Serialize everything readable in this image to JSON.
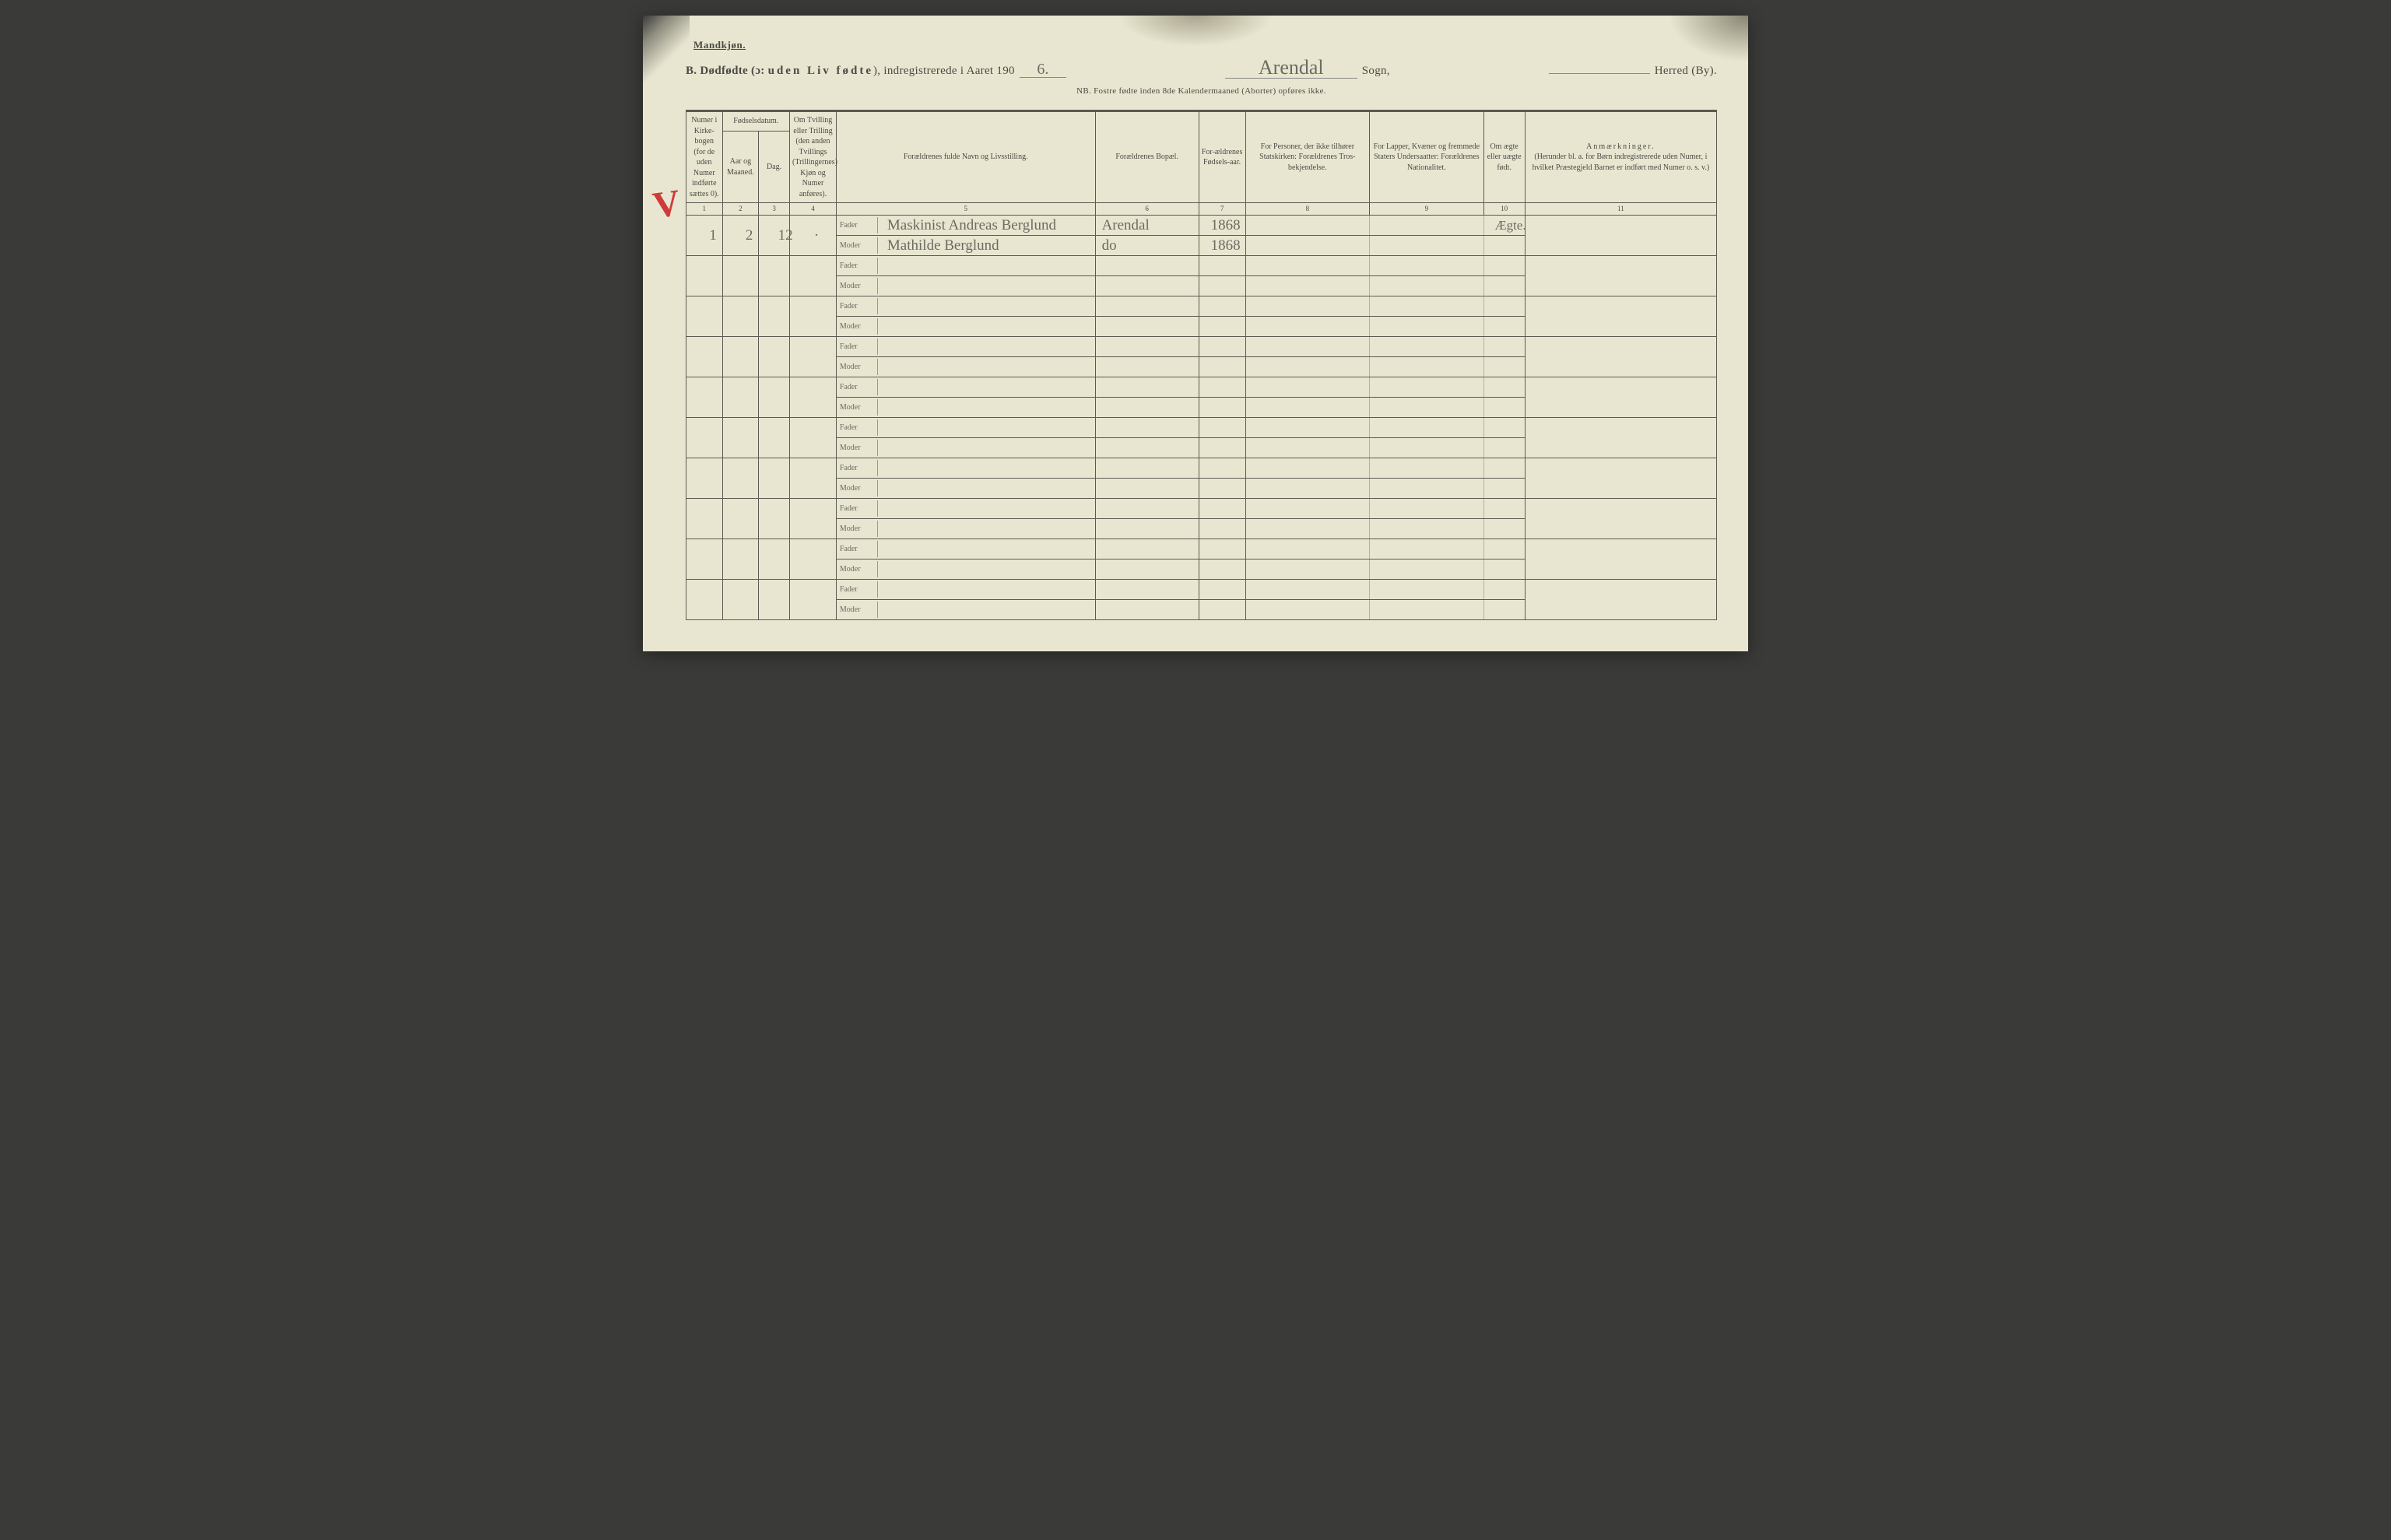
{
  "header": {
    "corner_label": "Mandkjøn.",
    "title_prefix": "B.  Dødfødte (ɔ: ",
    "title_spaced": "uden Liv fødte",
    "title_mid1": "), indregistrerede i Aaret 190",
    "year_hand": "6.",
    "sogn_hand": "Arendal",
    "title_sogn": " Sogn,",
    "herred_hand": "",
    "title_herred": "Herred (By).",
    "subtitle": "NB.  Fostre fødte inden 8de Kalendermaaned (Aborter) opføres ikke."
  },
  "columns": {
    "c1": "Numer i Kirke-bogen (for de uden Numer indførte sættes 0).",
    "c2_top": "Fødselsdatum.",
    "c2a": "Aar og Maaned.",
    "c2b": "Dag.",
    "c4": "Om Tvilling eller Trilling (den anden Tvillings (Trillingernes) Kjøn og Numer anføres).",
    "c5": "Forældrenes fulde Navn og Livsstilling.",
    "c6": "Forældrenes Bopæl.",
    "c7": "For-ældrenes Fødsels-aar.",
    "c8": "For Personer, der ikke tilhører Statskirken: Forældrenes Tros-bekjendelse.",
    "c9": "For Lapper, Kvæner og fremmede Staters Undersaatter: Forældrenes Nationalitet.",
    "c10": "Om ægte eller uægte født.",
    "c11_t": "Anmærkninger.",
    "c11_s": "(Herunder bl. a. for Børn indregistrerede uden Numer, i hvilket Præstegjeld Barnet er indført med Numer o. s. v.)"
  },
  "colnums": [
    "1",
    "2",
    "3",
    "4",
    "5",
    "6",
    "7",
    "8",
    "9",
    "10",
    "11"
  ],
  "labels": {
    "fader": "Fader",
    "moder": "Moder"
  },
  "entries": [
    {
      "num": "1",
      "month": "2",
      "day": "12",
      "twin": "·",
      "fader": "Maskinist Andreas Berglund",
      "moder": "Mathilde Berglund",
      "bopael_f": "Arendal",
      "bopael_m": "do",
      "faar_f": "1868",
      "faar_m": "1868",
      "c8": "",
      "c9": "",
      "c10": "Ægte.",
      "c11": ""
    },
    {
      "num": "",
      "month": "",
      "day": "",
      "twin": "",
      "fader": "",
      "moder": "",
      "bopael_f": "",
      "bopael_m": "",
      "faar_f": "",
      "faar_m": "",
      "c8": "",
      "c9": "",
      "c10": "",
      "c11": ""
    },
    {
      "num": "",
      "month": "",
      "day": "",
      "twin": "",
      "fader": "",
      "moder": "",
      "bopael_f": "",
      "bopael_m": "",
      "faar_f": "",
      "faar_m": "",
      "c8": "",
      "c9": "",
      "c10": "",
      "c11": ""
    },
    {
      "num": "",
      "month": "",
      "day": "",
      "twin": "",
      "fader": "",
      "moder": "",
      "bopael_f": "",
      "bopael_m": "",
      "faar_f": "",
      "faar_m": "",
      "c8": "",
      "c9": "",
      "c10": "",
      "c11": ""
    },
    {
      "num": "",
      "month": "",
      "day": "",
      "twin": "",
      "fader": "",
      "moder": "",
      "bopael_f": "",
      "bopael_m": "",
      "faar_f": "",
      "faar_m": "",
      "c8": "",
      "c9": "",
      "c10": "",
      "c11": ""
    },
    {
      "num": "",
      "month": "",
      "day": "",
      "twin": "",
      "fader": "",
      "moder": "",
      "bopael_f": "",
      "bopael_m": "",
      "faar_f": "",
      "faar_m": "",
      "c8": "",
      "c9": "",
      "c10": "",
      "c11": ""
    },
    {
      "num": "",
      "month": "",
      "day": "",
      "twin": "",
      "fader": "",
      "moder": "",
      "bopael_f": "",
      "bopael_m": "",
      "faar_f": "",
      "faar_m": "",
      "c8": "",
      "c9": "",
      "c10": "",
      "c11": ""
    },
    {
      "num": "",
      "month": "",
      "day": "",
      "twin": "",
      "fader": "",
      "moder": "",
      "bopael_f": "",
      "bopael_m": "",
      "faar_f": "",
      "faar_m": "",
      "c8": "",
      "c9": "",
      "c10": "",
      "c11": ""
    },
    {
      "num": "",
      "month": "",
      "day": "",
      "twin": "",
      "fader": "",
      "moder": "",
      "bopael_f": "",
      "bopael_m": "",
      "faar_f": "",
      "faar_m": "",
      "c8": "",
      "c9": "",
      "c10": "",
      "c11": ""
    },
    {
      "num": "",
      "month": "",
      "day": "",
      "twin": "",
      "fader": "",
      "moder": "",
      "bopael_f": "",
      "bopael_m": "",
      "faar_f": "",
      "faar_m": "",
      "c8": "",
      "c9": "",
      "c10": "",
      "c11": ""
    }
  ]
}
